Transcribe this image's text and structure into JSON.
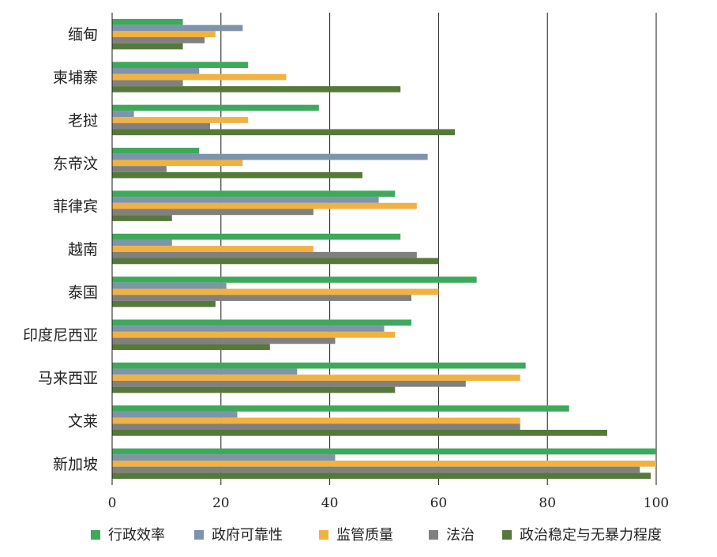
{
  "chart_data": {
    "type": "bar",
    "orientation": "horizontal",
    "title": "",
    "xlabel": "",
    "ylabel": "",
    "xlim": [
      0,
      100
    ],
    "x_ticks": [
      0,
      20,
      40,
      60,
      80,
      100
    ],
    "x_tick_labels": [
      "0",
      "20",
      "40",
      "60",
      "80",
      "100"
    ],
    "grid": "vertical",
    "legend_position": "bottom",
    "categories": [
      "缅甸",
      "柬埔寨",
      "老挝",
      "东帝汶",
      "菲律宾",
      "越南",
      "泰国",
      "印度尼西亚",
      "马来西亚",
      "文莱",
      "新加坡"
    ],
    "series": [
      {
        "name": "行政效率",
        "color": "#3daa5b",
        "values": [
          13,
          25,
          38,
          16,
          52,
          53,
          67,
          55,
          76,
          84,
          100
        ]
      },
      {
        "name": "政府可靠性",
        "color": "#7f93ab",
        "values": [
          24,
          16,
          4,
          58,
          49,
          11,
          21,
          50,
          34,
          23,
          41
        ]
      },
      {
        "name": "监管质量",
        "color": "#f1b240",
        "values": [
          19,
          32,
          25,
          24,
          56,
          37,
          60,
          52,
          75,
          75,
          100
        ]
      },
      {
        "name": "法治",
        "color": "#808080",
        "values": [
          17,
          13,
          18,
          10,
          37,
          56,
          55,
          41,
          65,
          75,
          97
        ]
      },
      {
        "name": "政治稳定与无暴力程度",
        "color": "#56793a",
        "values": [
          13,
          53,
          63,
          46,
          11,
          60,
          19,
          29,
          52,
          91,
          99
        ]
      }
    ]
  }
}
